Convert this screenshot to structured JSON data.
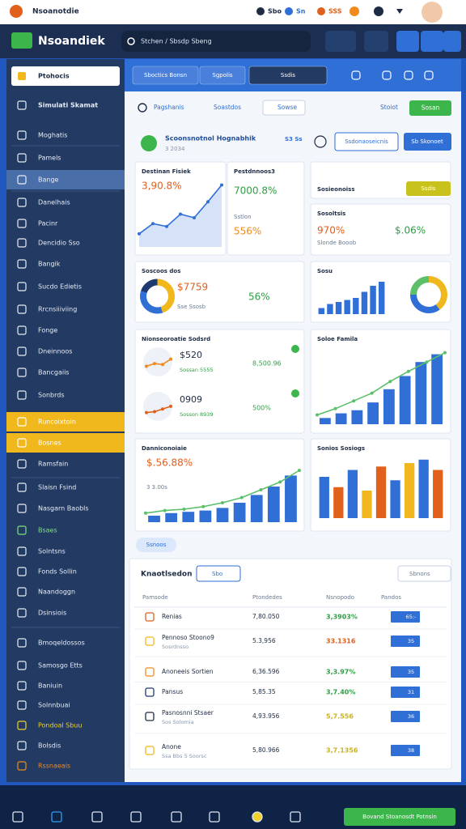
{
  "topbar": {
    "brand": "Nsoanotdie",
    "stats": [
      "Sbo",
      "Sn",
      "SSS"
    ]
  },
  "header": {
    "title": "Nsoandiek",
    "search": "Stchen / Sbsdp Sbeng"
  },
  "sidebar": {
    "items": [
      "Ptohocis",
      "Simulati Skamat",
      "Moghatis",
      "Pamels",
      "Bange",
      "Danelhais",
      "Pacinr",
      "Dencidio Sso",
      "Bangik",
      "Sucdo Edietis",
      "Rrcnsiiiviing",
      "Fonge",
      "Dneinnoos",
      "Bancgaiis",
      "Sonbrds",
      "Runcoixtoin",
      "Bosnes",
      "Ramsfain",
      "Slaisn Fsind",
      "Nasgarn Baobls",
      "Bsaes",
      "Solntsns",
      "Fonds Sollin",
      "Naandoggn",
      "Dsinsiois",
      "Bmoqeldossos",
      "Samosgo Etts",
      "Baniuin",
      "Solnnbuai",
      "Pondoal Sbuu",
      "Bolsdis",
      "Rssnaeais"
    ]
  },
  "tabs": [
    "Sboctics Bonsn",
    "Sgpolis",
    "Ssdis"
  ],
  "toolbar": {
    "items": [
      "Pagshanis",
      "Soastdos",
      "Sowse"
    ],
    "right": "Stoiot",
    "button": "Sosan"
  },
  "overview": {
    "title": "Scoonsnotnol Hognabhik",
    "subtitle": "3 2034",
    "badge": "S3 Ss",
    "buttons": [
      "Ssdonaoseicnis",
      "Sb Skonoet"
    ]
  },
  "cards": [
    {
      "title": "Destinan Fisiek",
      "value": "3,90.8%",
      "charts": [
        {
          "type": "area",
          "color": "#2f6fd6",
          "ylim": [
            0,
            100
          ],
          "values": [
            18,
            32,
            28,
            45,
            40,
            62,
            85
          ]
        }
      ]
    },
    {
      "title": "Pestdnnoos3",
      "value": "7000.8%",
      "note": "Sstlon",
      "stat": "556%",
      "stat_color": "#f08a1c"
    },
    {
      "title": "Sosieonoiss",
      "chip": "Ssdis"
    },
    {
      "title": "Sosoltsis",
      "value": "970%",
      "note": "Slonde Booob",
      "stat": "$.06%",
      "stat_color": "#2f9e44"
    },
    {
      "title": "Soscoos dos",
      "value": "$7759",
      "note": "Sse Ssosb",
      "stat": "56%",
      "stat_color": "#2f9e44",
      "charts": [
        {
          "type": "donut",
          "colors": [
            "#f0b81c",
            "#2f6fd6",
            "#1e3a6e"
          ],
          "values": [
            45,
            35,
            20
          ]
        }
      ]
    },
    {
      "title": "Sosu",
      "charts": [
        {
          "type": "bar",
          "color": "#2f6fd6",
          "ylim": [
            0,
            100
          ],
          "values": [
            15,
            25,
            30,
            35,
            40,
            55,
            70,
            80
          ]
        },
        {
          "type": "donut",
          "colors": [
            "#f0b81c",
            "#2f6fd6",
            "#5cc06a"
          ],
          "values": [
            40,
            35,
            25
          ]
        }
      ]
    },
    {
      "title": "Nionseoroatie Sodsrd",
      "rows": [
        {
          "value": "$520",
          "note": "Sossan 5555",
          "stat": "8,500.96",
          "color": "#f08a1c",
          "values": [
            30,
            45,
            40,
            70
          ]
        },
        {
          "value": "0909",
          "note": "Sosson 8939",
          "stat": "500%",
          "color": "#e0601c",
          "values": [
            20,
            25,
            40,
            55
          ]
        }
      ]
    },
    {
      "title": "Soloe Famila",
      "charts": [
        {
          "type": "bar",
          "color": "#2f6fd6",
          "ylim": [
            0,
            100
          ],
          "values": [
            8,
            14,
            18,
            28,
            45,
            62,
            80,
            90
          ]
        },
        {
          "type": "line",
          "color": "#5cc06a",
          "ylim": [
            0,
            100
          ],
          "values": [
            12,
            20,
            30,
            40,
            55,
            68,
            80,
            92
          ]
        }
      ]
    },
    {
      "title": "Danniconoiaie",
      "value": "$.56.88%",
      "note": "3 3.00s",
      "charts": [
        {
          "type": "bar",
          "color": "#2f6fd6",
          "ylim": [
            0,
            100
          ],
          "values": [
            10,
            14,
            16,
            18,
            22,
            30,
            42,
            55,
            72
          ]
        },
        {
          "type": "line",
          "color": "#5cc06a",
          "ylim": [
            0,
            100
          ],
          "values": [
            14,
            18,
            20,
            24,
            30,
            38,
            50,
            62,
            80
          ]
        }
      ]
    },
    {
      "title": "Sonios Sosiogs",
      "charts": [
        {
          "type": "bar",
          "colors": [
            "#2f6fd6",
            "#e0601c",
            "#2f6fd6",
            "#f0b81c",
            "#e0601c",
            "#2f6fd6",
            "#f0b81c",
            "#2f6fd6",
            "#e0601c"
          ],
          "ylim": [
            0,
            100
          ],
          "values": [
            60,
            45,
            70,
            40,
            75,
            55,
            80,
            85,
            70
          ]
        }
      ]
    }
  ],
  "section": "Ssnoos",
  "table": {
    "title": "Knaotlsedon",
    "filter": "Sbo",
    "sort": "Sbnons",
    "columns": [
      "Pamsode",
      "Ptondedes",
      "Nsnopodo",
      "Pandos"
    ],
    "rows": [
      {
        "name": "Renias",
        "amount": "7,80.050",
        "change": "3,3903%",
        "change_color": "#2f9e44",
        "tag": "65:-"
      },
      {
        "name": "Pennoso Stoono9",
        "sub": "Sosrdnsso",
        "amount": "5.3,956",
        "change": "33.1316",
        "change_color": "#e0601c",
        "tag": "35"
      },
      {
        "name": "Anoneeis Sortien",
        "amount": "6,36.596",
        "change": "3,3.97%",
        "change_color": "#2f9e44",
        "tag": "35"
      },
      {
        "name": "Pansus",
        "amount": "5,85.35",
        "change": "3,7.40%",
        "change_color": "#2f9e44",
        "tag": "31"
      },
      {
        "name": "Pasnosnni Stsaer",
        "sub": "Sos Solomia",
        "amount": "4,93.956",
        "change": "5,7.556",
        "change_color": "#c9b21c",
        "tag": "36"
      },
      {
        "name": "Anone",
        "sub": "Ssa Bbs 5 Soorsc",
        "amount": "5,80.966",
        "change": "3,7.1356",
        "change_color": "#c9b21c",
        "tag": "38"
      }
    ]
  },
  "footer": {
    "button": "Bovand Stoanosdt Potnsin"
  }
}
